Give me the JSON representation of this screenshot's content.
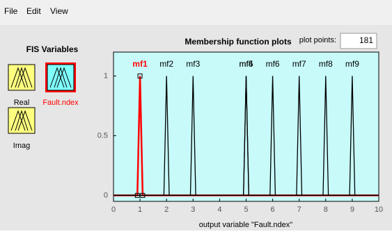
{
  "menu": [
    "File",
    "Edit",
    "View"
  ],
  "fis_panel": {
    "title": "FIS Variables",
    "variables": [
      {
        "name": "Real",
        "color": "#ffff80",
        "label_color": "#000000",
        "selected": false
      },
      {
        "name": "Fault.ndex",
        "color": "#80ffff",
        "label_color": "#ff0000",
        "selected": true
      },
      {
        "name": "Imag",
        "color": "#ffff80",
        "label_color": "#000000",
        "selected": false
      }
    ]
  },
  "plot_points_label": "plot points:",
  "plot_points": 181,
  "chart_data": {
    "type": "line",
    "title": "Membership function plots",
    "xlabel": "output variable \"Fault.ndex\"",
    "xlim": [
      0,
      10
    ],
    "xticks": [
      0,
      1,
      2,
      3,
      4,
      5,
      6,
      7,
      8,
      9,
      10
    ],
    "ylim": [
      -0.05,
      1.2
    ],
    "yticks": [
      0,
      0.5,
      1
    ],
    "background": "#c8fafa",
    "series": [
      {
        "name": "mf1",
        "color": "#ff0000",
        "markers": true,
        "x": [
          0,
          0.9,
          1,
          1.1,
          10
        ],
        "values": [
          0,
          0,
          1,
          0,
          0
        ]
      },
      {
        "name": "mf2",
        "color": "#000000",
        "x": [
          0,
          1.9,
          2,
          2.1,
          10
        ],
        "values": [
          0,
          0,
          1,
          0,
          0
        ]
      },
      {
        "name": "mf3",
        "color": "#000000",
        "x": [
          0,
          2.9,
          3,
          3.1,
          10
        ],
        "values": [
          0,
          0,
          1,
          0,
          0
        ]
      },
      {
        "name": "mf4",
        "color": "#000000",
        "x": [
          0,
          4.9,
          5,
          5.1,
          10
        ],
        "values": [
          0,
          0,
          1,
          0,
          0
        ]
      },
      {
        "name": "mf5",
        "color": "#000000",
        "x": [
          0,
          4.9,
          5,
          5.1,
          10
        ],
        "values": [
          0,
          0,
          1,
          0,
          0
        ]
      },
      {
        "name": "mf6",
        "color": "#000000",
        "x": [
          0,
          5.9,
          6,
          6.1,
          10
        ],
        "values": [
          0,
          0,
          1,
          0,
          0
        ]
      },
      {
        "name": "mf7",
        "color": "#000000",
        "x": [
          0,
          6.9,
          7,
          7.1,
          10
        ],
        "values": [
          0,
          0,
          1,
          0,
          0
        ]
      },
      {
        "name": "mf8",
        "color": "#000000",
        "x": [
          0,
          7.9,
          8,
          8.1,
          10
        ],
        "values": [
          0,
          0,
          1,
          0,
          0
        ]
      },
      {
        "name": "mf9",
        "color": "#000000",
        "x": [
          0,
          8.9,
          9,
          9.1,
          10
        ],
        "values": [
          0,
          0,
          1,
          0,
          0
        ]
      }
    ]
  }
}
